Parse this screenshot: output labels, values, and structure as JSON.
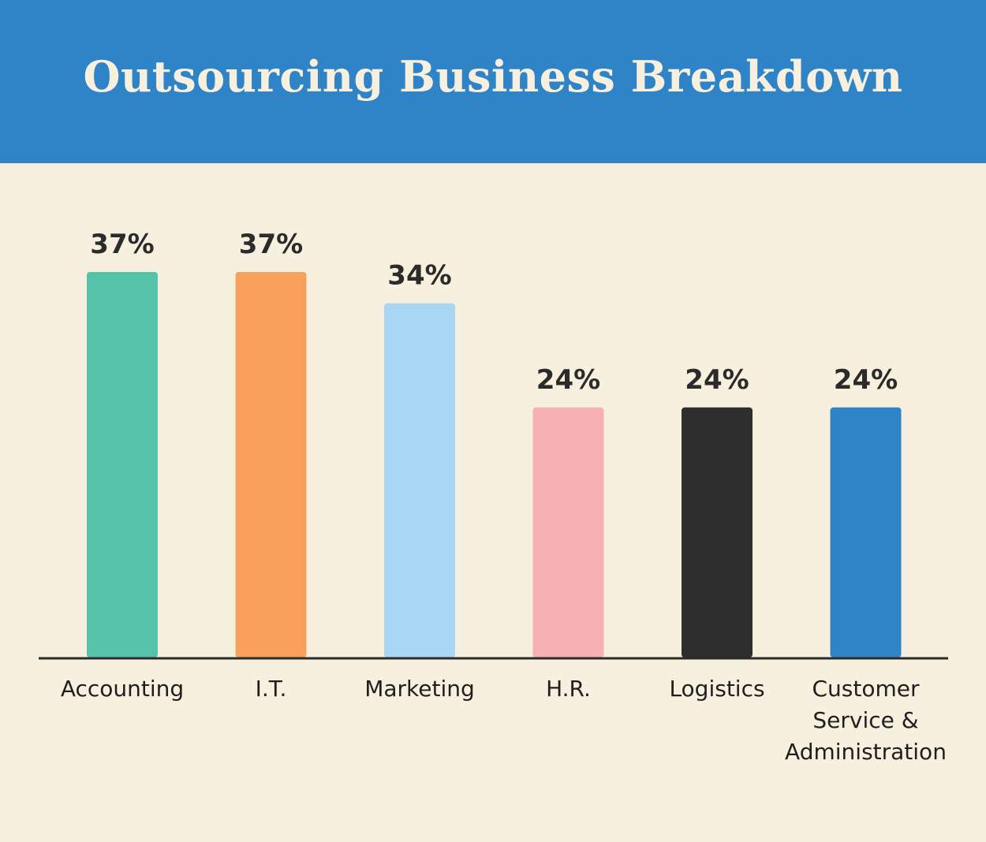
{
  "header": {
    "title": "Outsourcing Business Breakdown"
  },
  "colors": {
    "header_bg": "#2f83c7",
    "background": "#f7f0de",
    "axis": "#2b2b2b"
  },
  "chart_data": {
    "type": "bar",
    "title": "Outsourcing Business Breakdown",
    "xlabel": "",
    "ylabel": "",
    "categories": [
      "Accounting",
      "I.T.",
      "Marketing",
      "H.R.",
      "Logistics",
      "Customer\nService &\nAdministration"
    ],
    "values": [
      37,
      37,
      34,
      24,
      24,
      24
    ],
    "value_labels": [
      "37%",
      "37%",
      "34%",
      "24%",
      "24%",
      "24%"
    ],
    "colors": [
      "#55c3aa",
      "#f7a15c",
      "#a8d6f3",
      "#f7b0b3",
      "#2d2d2d",
      "#2f83c7"
    ],
    "ylim": [
      0,
      37
    ],
    "grid": false,
    "legend": "none"
  }
}
